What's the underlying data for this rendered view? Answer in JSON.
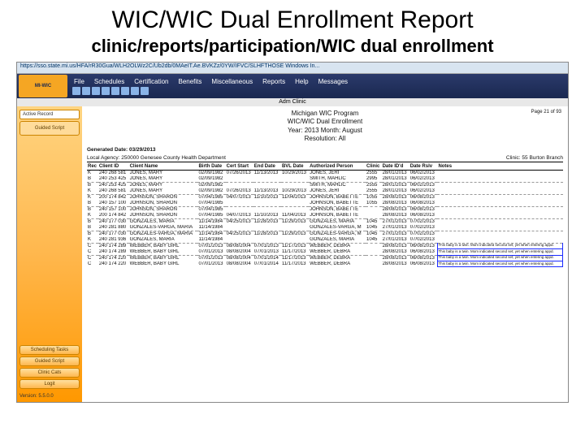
{
  "slide": {
    "title": "WIC/WIC Dual Enrollment Report",
    "subtitle": "clinic/reports/participation/WIC dual enrollment"
  },
  "addressBar": "https://sso.state.mi.us/HFA/rR30Gua/WLH2OLWz2C/Ub2db/0MAeIT.Ae.BVKZz/0YW/IFVC/SLHFTHOSE   Windows In...",
  "logoText": "MI-WIC",
  "menus": [
    "File",
    "Schedules",
    "Certification",
    "Benefits",
    "Miscellaneous",
    "Reports",
    "Help",
    "Messages"
  ],
  "adminLabel": "Adm Clinic",
  "sidebar": {
    "activeRecord": "Active Record",
    "guidedScript": "Guided Script",
    "buttons": [
      "Scheduling Tasks",
      "Guided Script",
      "Clinic Cats",
      "Logit"
    ],
    "version": "Version: 5.5.0.0"
  },
  "report": {
    "programTitle": "Michigan WIC Program",
    "reportTitle": "WIC/WIC Dual Enrollment",
    "yearMonth": "Year: 2013    Month: August",
    "resolution": "Resolution: All",
    "pageNum": "Page 21 of 93",
    "generated": "Generated Date: 03/29/2013",
    "agency": "Local Agency: 250000 Genesee County Health Department",
    "clinic": "Clinic: 55 Burton Branch",
    "columns": [
      "Rec",
      "Client ID",
      "Client Name",
      "Birth Date",
      "Cert Start",
      "End Date",
      "BVL Date",
      "Authorized Person",
      "Clinic",
      "Date ID'd",
      "Date Rslv",
      "Notes"
    ],
    "rows": [
      {
        "rec": "K",
        "id": "240 268 581",
        "name": "JONES, MARY",
        "birth": "02/09/1982",
        "cert": "07/26/2013",
        "end": "11/13/2013",
        "bvl": "10/29/2013",
        "auth": "JONES, JERI",
        "clinic": "2555",
        "dateid": "28/01/2013",
        "rslv": "06/02/2013",
        "notes": "",
        "sep": false
      },
      {
        "rec": "B",
        "id": "240 253 425",
        "name": "JONES, MARY",
        "birth": "02/09/1982",
        "cert": "",
        "end": "",
        "bvl": "",
        "auth": "SMITH, MAHLIC",
        "clinic": "2995",
        "dateid": "28/01/2013",
        "rslv": "06/02/2013",
        "notes": "",
        "sep": false
      },
      {
        "rec": "B",
        "id": "240 253 425",
        "name": "JONES, MARY",
        "birth": "02/09/1982",
        "cert": "",
        "end": "",
        "bvl": "",
        "auth": "SMITH, MAHLIC",
        "clinic": "2555",
        "dateid": "28/01/2013",
        "rslv": "06/02/2013",
        "notes": "",
        "sep": true
      },
      {
        "rec": "K",
        "id": "240 268 581",
        "name": "JONES, MARY",
        "birth": "02/09/1982",
        "cert": "07/26/2013",
        "end": "11/13/2013",
        "bvl": "10/29/2013",
        "auth": "JONES, JERI",
        "clinic": "2555",
        "dateid": "28/01/2013",
        "rslv": "06/02/2013",
        "notes": "",
        "sep": false
      },
      {
        "rec": "K",
        "id": "200 174 842",
        "name": "JOHNSON, SHARON",
        "birth": "07/04/1985",
        "cert": "04/07/2013",
        "end": "11/10/2013",
        "bvl": "11/04/2013",
        "auth": "JOHNSON, BABETTE",
        "clinic": "1055",
        "dateid": "28/08/2013",
        "rslv": "06/08/2013",
        "notes": "",
        "sep": true
      },
      {
        "rec": "B",
        "id": "240 157 100",
        "name": "JOHNSON, SHARON",
        "birth": "07/04/1985",
        "cert": "",
        "end": "",
        "bvl": "",
        "auth": "JOHNSON, BABETTE",
        "clinic": "1055",
        "dateid": "28/08/2013",
        "rslv": "06/08/2013",
        "notes": "",
        "sep": false
      },
      {
        "rec": "B",
        "id": "240 157 100",
        "name": "JOHNSON, SHARON",
        "birth": "07/04/1985",
        "cert": "",
        "end": "",
        "bvl": "",
        "auth": "JOHNSON, BABETTE",
        "clinic": "",
        "dateid": "28/08/2013",
        "rslv": "06/08/2013",
        "notes": "",
        "sep": true
      },
      {
        "rec": "K",
        "id": "200 174 842",
        "name": "JOHNSON, SHARON",
        "birth": "07/04/1985",
        "cert": "04/07/2013",
        "end": "11/10/2013",
        "bvl": "11/04/2013",
        "auth": "JOHNSON, BABETTE",
        "clinic": "",
        "dateid": "28/08/2013",
        "rslv": "06/08/2013",
        "notes": "",
        "sep": false
      },
      {
        "rec": "B",
        "id": "240 177 030",
        "name": "GONZALES, MARIA",
        "birth": "11/14/1984",
        "cert": "04/25/2013",
        "end": "11/28/2013",
        "bvl": "11/29/2013",
        "auth": "GONZALES, MARIA",
        "clinic": "1045",
        "dateid": "27/01/2013",
        "rslv": "07/02/2013",
        "notes": "",
        "sep": true
      },
      {
        "rec": "B",
        "id": "240 281 880",
        "name": "GONZALES-VARGA, MARIA",
        "birth": "11/14/1984",
        "cert": "",
        "end": "",
        "bvl": "",
        "auth": "GONZALES-VARGA, M",
        "clinic": "1045",
        "dateid": "27/01/2013",
        "rslv": "07/02/2013",
        "notes": "",
        "sep": false
      },
      {
        "rec": "B",
        "id": "240 177 030",
        "name": "GONZALES-VARGA, MARIA",
        "birth": "11/14/1984",
        "cert": "04/25/2013",
        "end": "11/28/2013",
        "bvl": "11/29/2013",
        "auth": "GONZALES-VARGA, M",
        "clinic": "1045",
        "dateid": "27/01/2013",
        "rslv": "07/02/2013",
        "notes": "",
        "sep": true
      },
      {
        "rec": "K",
        "id": "240 281 936",
        "name": "GONZALES, MARIA",
        "birth": "11/14/1984",
        "cert": "",
        "end": "",
        "bvl": "",
        "auth": "GONZALES, MARIA",
        "clinic": "1045",
        "dateid": "27/01/2013",
        "rslv": "07/02/2013",
        "notes": "",
        "sep": false
      },
      {
        "rec": "C",
        "id": "240 174 289",
        "name": "WEBBER, BABY GIRL",
        "birth": "07/01/2013",
        "cert": "08/08/2004",
        "end": "07/01/2013",
        "bvl": "11/17/2013",
        "auth": "WEBBER, DEBRA",
        "clinic": "",
        "dateid": "28/08/2013",
        "rslv": "06/08/2013",
        "notes": "This baby is a twin. Mom indicated second set; yet when entering appd.",
        "sep": true
      },
      {
        "rec": "C",
        "id": "240 174 289",
        "name": "WEBBER, BABY GIRL",
        "birth": "07/01/2013",
        "cert": "08/08/2004",
        "end": "07/01/2013",
        "bvl": "11/17/2013",
        "auth": "WEBBER, DEBRA",
        "clinic": "",
        "dateid": "28/08/2013",
        "rslv": "06/08/2013",
        "notes": "This baby is a twin. Mom indicated second set; yet when entering appd.",
        "sep": false
      },
      {
        "rec": "C",
        "id": "240 174 220",
        "name": "WEBBER, BABY GIRL",
        "birth": "07/01/2013",
        "cert": "08/08/2004",
        "end": "07/01/2014",
        "bvl": "11/17/2013",
        "auth": "WEBBER, DEBRA",
        "clinic": "",
        "dateid": "28/08/2013",
        "rslv": "06/08/2013",
        "notes": "This baby is a twin. Mom indicated second set; yet when entering appd.",
        "sep": true
      },
      {
        "rec": "C",
        "id": "240 174 220",
        "name": "WEBBER, BABY GIRL",
        "birth": "07/01/2013",
        "cert": "08/08/2004",
        "end": "07/01/2014",
        "bvl": "11/17/2013",
        "auth": "WEBBER, DEBRA",
        "clinic": "",
        "dateid": "28/08/2013",
        "rslv": "06/08/2013",
        "notes": "This baby is a twin. Mom indicated second set; yet when entering appd.",
        "sep": false
      }
    ]
  },
  "colors": {
    "bannerTop": "#2b3a6b",
    "bannerBottom": "#1a2850",
    "sidebarTop": "#ffd480",
    "sidebarBottom": "#ff9800",
    "noteBorder": "#1a2aff"
  }
}
